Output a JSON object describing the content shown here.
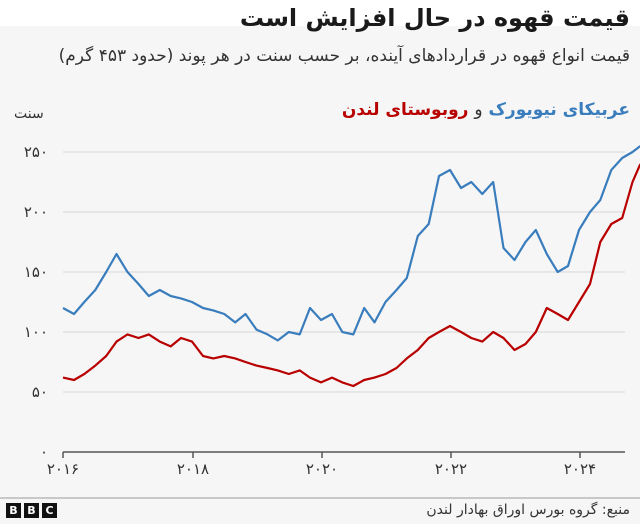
{
  "header": {
    "title": "قیمت قهوه در حال افزایش است",
    "subtitle": "قیمت انواع قهوه در قراردادهای آینده، بر حسب سنت در هر پوند (حدود ۴۵۳ گرم)"
  },
  "legend": {
    "series_a": "عربیکای نیویورک",
    "conjunction": "و",
    "series_b": "روبوستای لندن",
    "color_a": "#3a7dbd",
    "color_b": "#b80000"
  },
  "axes": {
    "y_unit": "سنت",
    "y_ticks": [
      "۰",
      "۵۰",
      "۱۰۰",
      "۱۵۰",
      "۲۰۰",
      "۲۵۰"
    ],
    "x_ticks": [
      "۲۰۱۶",
      "۲۰۱۸",
      "۲۰۲۰",
      "۲۰۲۲",
      "۲۰۲۴"
    ]
  },
  "footer": {
    "brand": [
      "B",
      "B",
      "C"
    ],
    "source": "منبع: گروه بورس اوراق بهادار لندن"
  },
  "chart_data": {
    "type": "line",
    "title": "قیمت قهوه در حال افزایش است",
    "subtitle": "قیمت انواع قهوه در قراردادهای آینده، بر حسب سنت در هر پوند (حدود ۴۵۳ گرم)",
    "xlabel": "",
    "ylabel": "سنت",
    "ylim": [
      0,
      260
    ],
    "xlim": [
      2016,
      2025.0
    ],
    "y_ticks": [
      0,
      50,
      100,
      150,
      200,
      250
    ],
    "x_ticks": [
      2016,
      2018,
      2020,
      2022,
      2024
    ],
    "grid": true,
    "legend_position": "top",
    "x": [
      2016.0,
      2016.17,
      2016.33,
      2016.5,
      2016.67,
      2016.83,
      2017.0,
      2017.17,
      2017.33,
      2017.5,
      2017.67,
      2017.83,
      2018.0,
      2018.17,
      2018.33,
      2018.5,
      2018.67,
      2018.83,
      2019.0,
      2019.17,
      2019.33,
      2019.5,
      2019.67,
      2019.83,
      2020.0,
      2020.17,
      2020.33,
      2020.5,
      2020.67,
      2020.83,
      2021.0,
      2021.17,
      2021.33,
      2021.5,
      2021.67,
      2021.83,
      2022.0,
      2022.17,
      2022.33,
      2022.5,
      2022.67,
      2022.83,
      2023.0,
      2023.17,
      2023.33,
      2023.5,
      2023.67,
      2023.83,
      2024.0,
      2024.17,
      2024.33,
      2024.5,
      2024.67,
      2024.83,
      2024.95
    ],
    "series": [
      {
        "name": "عربیکای نیویورک",
        "color": "#3a7dbd",
        "values": [
          120,
          115,
          125,
          135,
          150,
          165,
          150,
          140,
          130,
          135,
          130,
          128,
          125,
          120,
          118,
          115,
          108,
          115,
          102,
          98,
          93,
          100,
          98,
          120,
          110,
          115,
          100,
          98,
          120,
          108,
          125,
          135,
          145,
          180,
          190,
          230,
          235,
          220,
          225,
          215,
          225,
          170,
          160,
          175,
          185,
          165,
          150,
          155,
          185,
          200,
          210,
          235,
          245,
          250,
          255
        ]
      },
      {
        "name": "روبوستای لندن",
        "color": "#b80000",
        "values": [
          62,
          60,
          65,
          72,
          80,
          92,
          98,
          95,
          98,
          92,
          88,
          95,
          92,
          80,
          78,
          80,
          78,
          75,
          72,
          70,
          68,
          65,
          68,
          62,
          58,
          62,
          58,
          55,
          60,
          62,
          65,
          70,
          78,
          85,
          95,
          100,
          105,
          100,
          95,
          92,
          100,
          95,
          85,
          90,
          100,
          120,
          115,
          110,
          125,
          140,
          175,
          190,
          195,
          225,
          240
        ]
      }
    ]
  }
}
